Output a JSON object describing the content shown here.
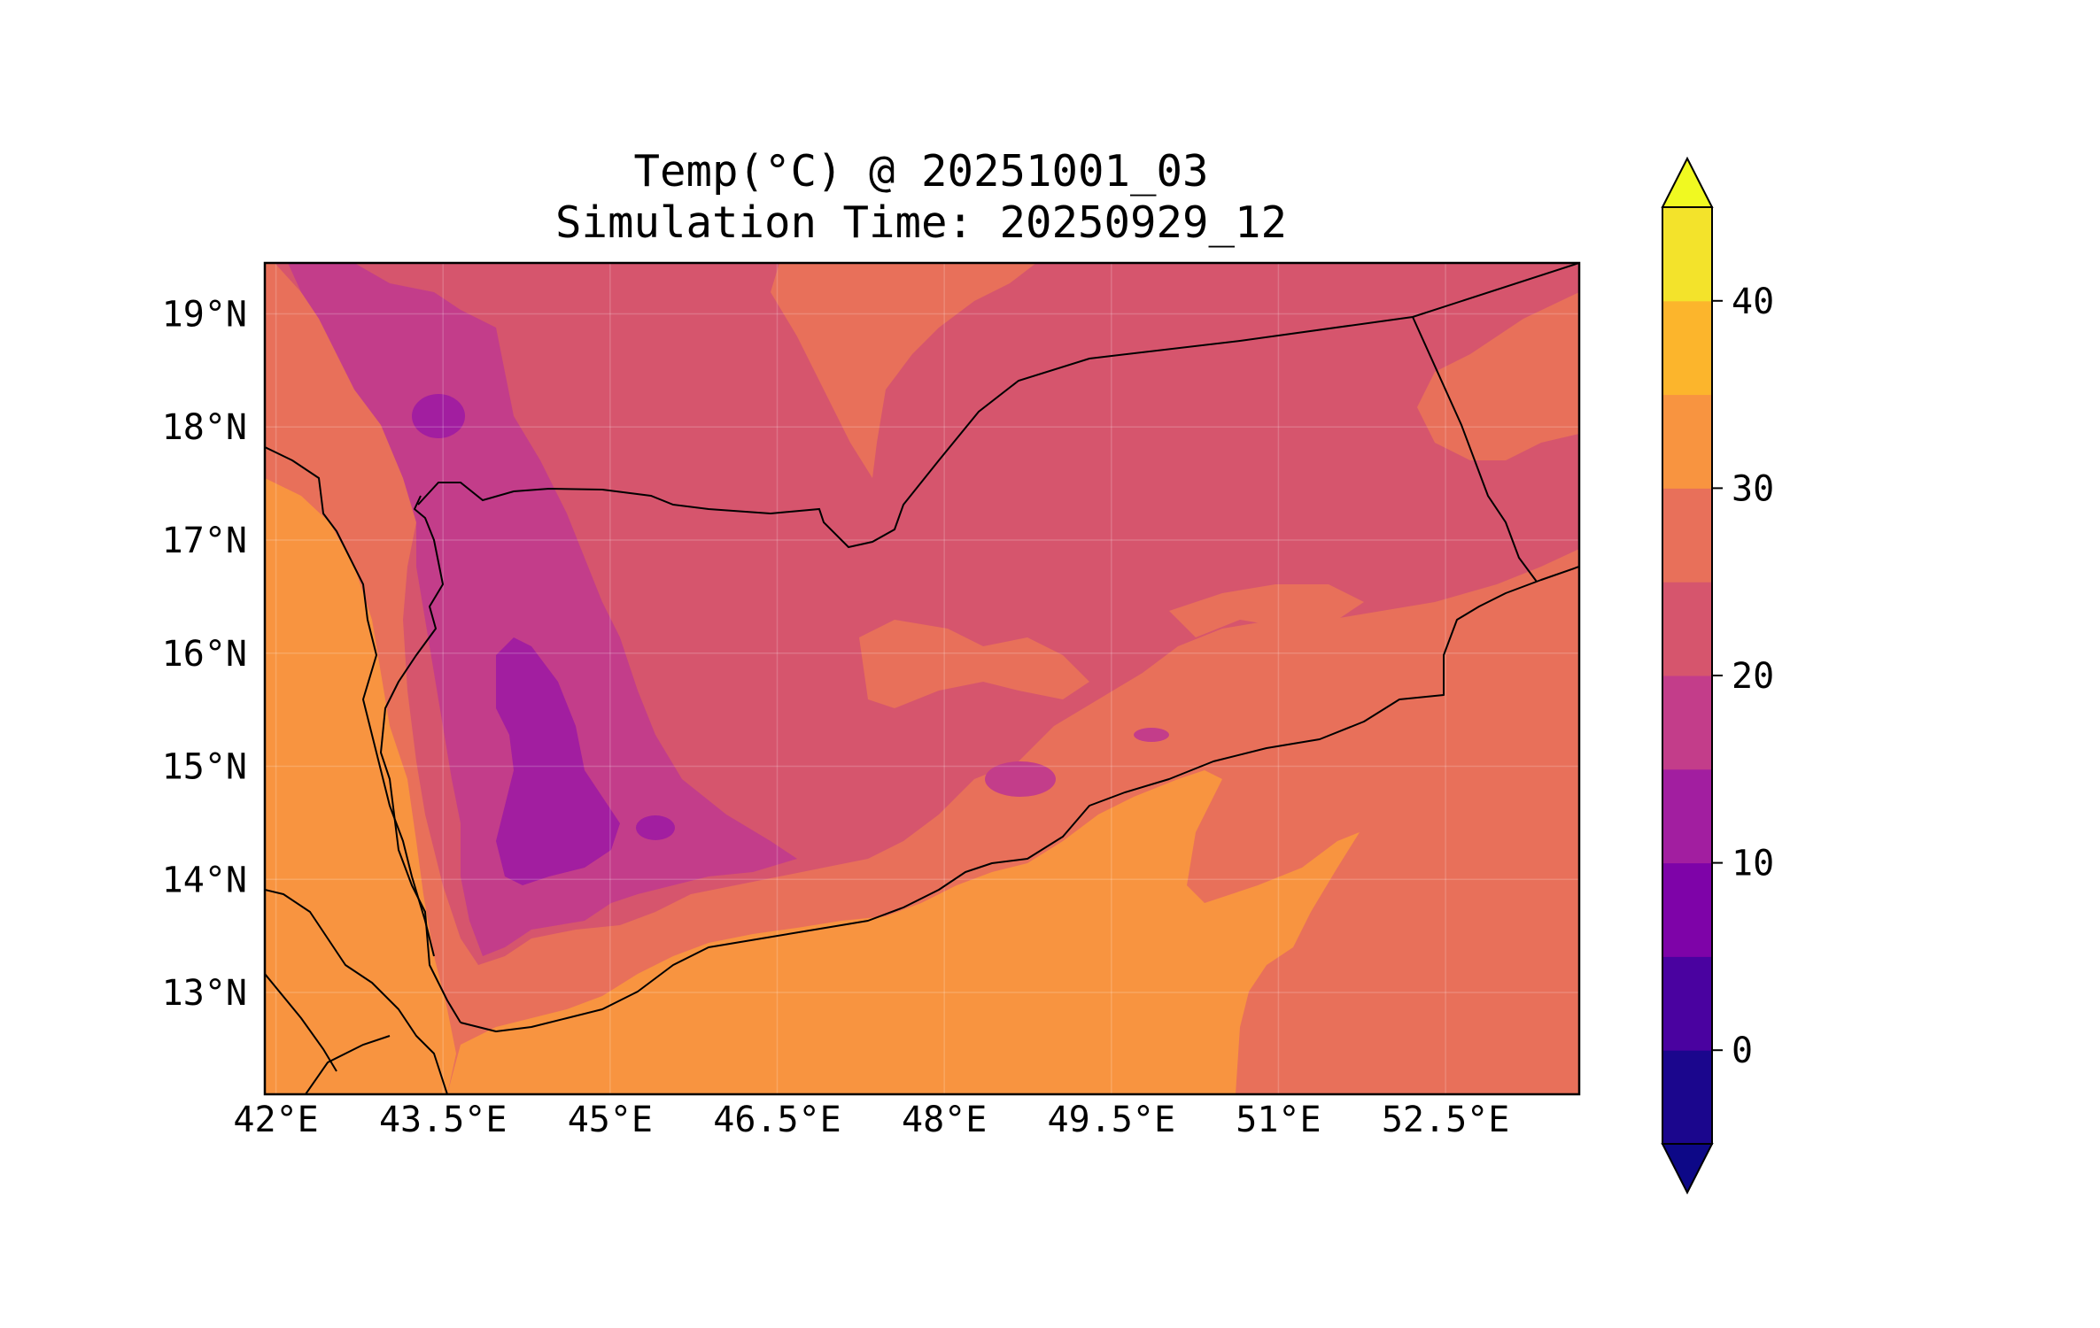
{
  "title_line1": "Temp(°C) @ 20251001_03",
  "title_line2": "Simulation Time: 20250929_12",
  "map": {
    "lon_range": [
      41.9,
      53.7
    ],
    "lat_range": [
      12.1,
      19.45
    ],
    "x_ticks": [
      "42°E",
      "43.5°E",
      "45°E",
      "46.5°E",
      "48°E",
      "49.5°E",
      "51°E",
      "52.5°E"
    ],
    "x_tick_values": [
      42,
      43.5,
      45,
      46.5,
      48,
      49.5,
      51,
      52.5
    ],
    "y_ticks": [
      "19°N",
      "18°N",
      "17°N",
      "16°N",
      "15°N",
      "14°N",
      "13°N"
    ],
    "y_tick_values": [
      19,
      18,
      17,
      16,
      15,
      14,
      13
    ],
    "field": "2m temperature",
    "units": "°C"
  },
  "colorbar": {
    "levels": [
      -5,
      0,
      5,
      10,
      15,
      20,
      25,
      30,
      35,
      40,
      45
    ],
    "colors": [
      "#1b068d",
      "#4a02a0",
      "#7e03a8",
      "#a21ea0",
      "#c33d8a",
      "#d6556d",
      "#e8705a",
      "#f89440",
      "#fcb52c",
      "#f3e32b"
    ],
    "under_color": "#0d0887",
    "over_color": "#f0f921",
    "tick_values": [
      0,
      10,
      20,
      30,
      40
    ],
    "tick_labels": [
      "0",
      "10",
      "20",
      "30",
      "40"
    ],
    "extend": "both"
  }
}
